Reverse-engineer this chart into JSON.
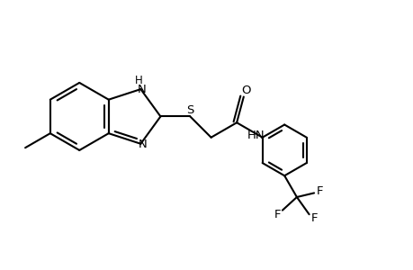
{
  "background_color": "#ffffff",
  "line_color": "#000000",
  "line_width": 1.5,
  "figsize": [
    4.6,
    3.0
  ],
  "dpi": 100,
  "xlim": [
    0,
    10
  ],
  "ylim": [
    0,
    6.5
  ]
}
